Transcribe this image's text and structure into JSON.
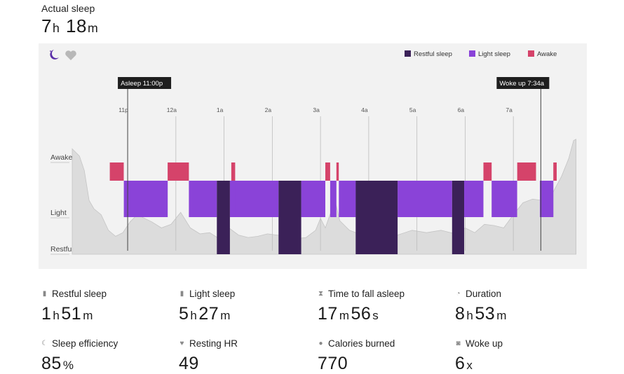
{
  "header": {
    "label": "Actual sleep",
    "value_hours": "7",
    "value_hours_unit": "h",
    "value_minutes": "18",
    "value_minutes_unit": "m"
  },
  "chart": {
    "icons": [
      "moon-icon",
      "heart-icon"
    ],
    "legend": [
      {
        "label": "Restful sleep",
        "color": "#3b2158"
      },
      {
        "label": "Light sleep",
        "color": "#8a43d8"
      },
      {
        "label": "Awake",
        "color": "#d5436a"
      }
    ],
    "markers": {
      "asleep": "Asleep 11:00p",
      "woke": "Woke up 7:34a"
    },
    "y_labels": [
      "Awake",
      "Light",
      "Restful"
    ]
  },
  "chart_data": {
    "type": "area",
    "x_ticks": [
      "11p",
      "12a",
      "1a",
      "2a",
      "3a",
      "4a",
      "5a",
      "6a",
      "7a"
    ],
    "x_ticks_hours": [
      23,
      24,
      25,
      26,
      27,
      28,
      29,
      30,
      31
    ],
    "xlim_hours": [
      21.85,
      32.35
    ],
    "y_levels": [
      "Restful",
      "Light",
      "Awake"
    ],
    "asleep_hour": 23.0,
    "woke_hour": 31.57,
    "segments": [
      {
        "state": "Awake",
        "start": 22.63,
        "end": 22.92
      },
      {
        "state": "Light",
        "start": 22.92,
        "end": 23.83
      },
      {
        "state": "Awake",
        "start": 23.83,
        "end": 24.27
      },
      {
        "state": "Light",
        "start": 24.27,
        "end": 24.85
      },
      {
        "state": "Restful",
        "start": 24.85,
        "end": 25.12
      },
      {
        "state": "Light",
        "start": 25.12,
        "end": 25.23
      },
      {
        "state": "Awake",
        "start": 25.15,
        "end": 25.23
      },
      {
        "state": "Light",
        "start": 25.23,
        "end": 26.13
      },
      {
        "state": "Restful",
        "start": 26.13,
        "end": 26.6
      },
      {
        "state": "Light",
        "start": 26.6,
        "end": 27.1
      },
      {
        "state": "Awake",
        "start": 27.1,
        "end": 27.2
      },
      {
        "state": "Light",
        "start": 27.2,
        "end": 27.33
      },
      {
        "state": "Awake",
        "start": 27.33,
        "end": 27.38
      },
      {
        "state": "Light",
        "start": 27.38,
        "end": 27.73
      },
      {
        "state": "Restful",
        "start": 27.73,
        "end": 28.6
      },
      {
        "state": "Light",
        "start": 28.6,
        "end": 29.73
      },
      {
        "state": "Restful",
        "start": 29.73,
        "end": 29.98
      },
      {
        "state": "Light",
        "start": 29.98,
        "end": 30.38
      },
      {
        "state": "Awake",
        "start": 30.38,
        "end": 30.55
      },
      {
        "state": "Light",
        "start": 30.55,
        "end": 31.08
      },
      {
        "state": "Awake",
        "start": 31.08,
        "end": 31.47
      },
      {
        "state": "Light",
        "start": 31.55,
        "end": 31.83
      },
      {
        "state": "Awake",
        "start": 31.83,
        "end": 31.9
      }
    ],
    "hr_trace": [
      [
        21.85,
        0.88
      ],
      [
        22.0,
        0.82
      ],
      [
        22.1,
        0.7
      ],
      [
        22.2,
        0.45
      ],
      [
        22.3,
        0.38
      ],
      [
        22.45,
        0.33
      ],
      [
        22.6,
        0.2
      ],
      [
        22.75,
        0.15
      ],
      [
        22.9,
        0.18
      ],
      [
        23.05,
        0.27
      ],
      [
        23.2,
        0.33
      ],
      [
        23.35,
        0.3
      ],
      [
        23.5,
        0.27
      ],
      [
        23.7,
        0.22
      ],
      [
        23.9,
        0.25
      ],
      [
        24.1,
        0.35
      ],
      [
        24.3,
        0.22
      ],
      [
        24.5,
        0.17
      ],
      [
        24.7,
        0.18
      ],
      [
        24.9,
        0.13
      ],
      [
        25.1,
        0.22
      ],
      [
        25.3,
        0.16
      ],
      [
        25.5,
        0.14
      ],
      [
        25.7,
        0.15
      ],
      [
        25.9,
        0.17
      ],
      [
        26.1,
        0.16
      ],
      [
        26.3,
        0.15
      ],
      [
        26.5,
        0.13
      ],
      [
        26.7,
        0.14
      ],
      [
        26.9,
        0.2
      ],
      [
        27.0,
        0.3
      ],
      [
        27.1,
        0.22
      ],
      [
        27.3,
        0.45
      ],
      [
        27.4,
        0.28
      ],
      [
        27.6,
        0.2
      ],
      [
        27.8,
        0.17
      ],
      [
        28.0,
        0.16
      ],
      [
        28.3,
        0.14
      ],
      [
        28.6,
        0.16
      ],
      [
        28.9,
        0.2
      ],
      [
        29.2,
        0.18
      ],
      [
        29.5,
        0.2
      ],
      [
        29.8,
        0.17
      ],
      [
        30.0,
        0.22
      ],
      [
        30.2,
        0.18
      ],
      [
        30.4,
        0.25
      ],
      [
        30.6,
        0.24
      ],
      [
        30.8,
        0.22
      ],
      [
        31.0,
        0.33
      ],
      [
        31.2,
        0.43
      ],
      [
        31.4,
        0.46
      ],
      [
        31.6,
        0.45
      ],
      [
        31.8,
        0.5
      ],
      [
        32.0,
        0.65
      ],
      [
        32.15,
        0.8
      ],
      [
        32.25,
        0.95
      ],
      [
        32.3,
        0.96
      ]
    ]
  },
  "metrics": [
    {
      "icon": "bar-chart-icon",
      "label": "Restful sleep",
      "parts": [
        [
          "1",
          "h"
        ],
        [
          "51",
          "m"
        ]
      ]
    },
    {
      "icon": "bar-chart-icon",
      "label": "Light sleep",
      "parts": [
        [
          "5",
          "h"
        ],
        [
          "27",
          "m"
        ]
      ]
    },
    {
      "icon": "hourglass-icon",
      "label": "Time to fall asleep",
      "parts": [
        [
          "17",
          "m"
        ],
        [
          "56",
          "s"
        ]
      ]
    },
    {
      "icon": "clock-icon",
      "label": "Duration",
      "parts": [
        [
          "8",
          "h"
        ],
        [
          "53",
          "m"
        ]
      ]
    },
    {
      "icon": "moon-icon",
      "label": "Sleep efficiency",
      "parts": [
        [
          "85",
          "%"
        ]
      ]
    },
    {
      "icon": "heart-icon",
      "label": "Resting HR",
      "parts": [
        [
          "49",
          ""
        ]
      ]
    },
    {
      "icon": "flame-icon",
      "label": "Calories burned",
      "parts": [
        [
          "770",
          ""
        ]
      ]
    },
    {
      "icon": "alarm-icon",
      "label": "Woke up",
      "parts": [
        [
          "6",
          "x"
        ]
      ]
    }
  ]
}
